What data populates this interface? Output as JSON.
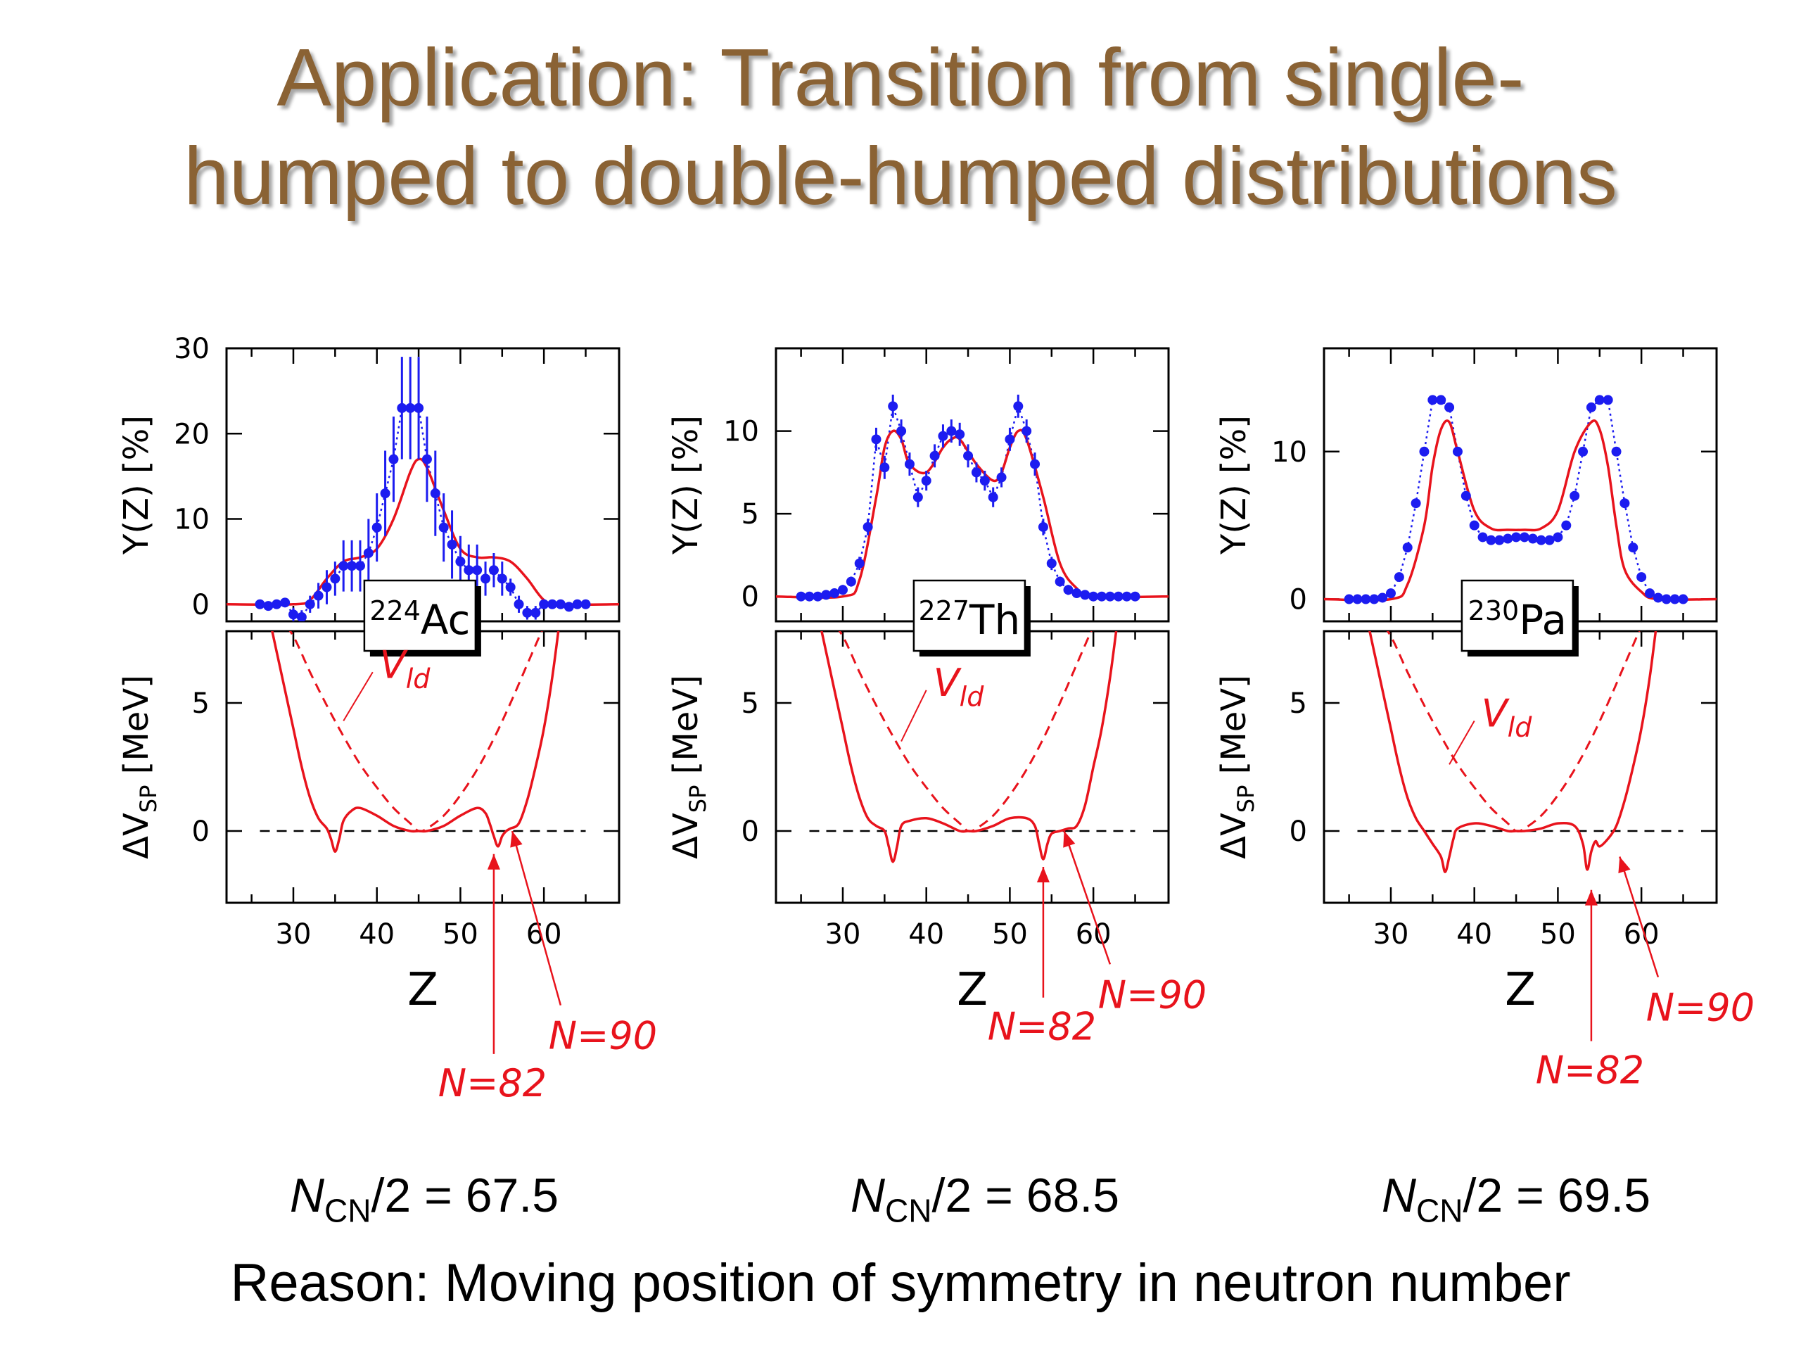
{
  "slide": {
    "title_line1": "Application: Transition from single-",
    "title_line2": "humped to double-humped distributions",
    "reason": "Reason: Moving position of symmetry in neutron number"
  },
  "colors": {
    "title": "#8a6234",
    "theory": "#e8131c",
    "data": "#1c1cf0",
    "annotation": "#e8131c"
  },
  "chart_data": [
    {
      "type": "scatter",
      "nucleus_mass": "224",
      "nucleus_symbol": "Ac",
      "ncn_label": "67.5",
      "xlabel": "Z",
      "ylabel_top": "Y(Z)  [%]",
      "ylabel_bottom_unit": "[MeV]",
      "xlim": [
        22,
        69
      ],
      "ylim_top": [
        -2,
        30
      ],
      "ylim_bottom": [
        -2.8,
        7.8
      ],
      "xticks": [
        "30",
        "40",
        "50",
        "60"
      ],
      "yticks_top": [
        "0",
        "10",
        "20",
        "30"
      ],
      "yticks_bottom": [
        "0",
        "5"
      ],
      "vld_label": "ld",
      "n82_label": "N=82",
      "n90_label": "N=90",
      "yield_x": [
        26,
        27,
        28,
        29,
        30,
        31,
        32,
        33,
        34,
        35,
        36,
        37,
        38,
        39,
        40,
        41,
        42,
        43,
        44,
        45,
        46,
        47,
        48,
        49,
        50,
        51,
        52,
        53,
        54,
        55,
        56,
        57,
        58,
        59,
        60,
        61,
        62,
        63,
        64,
        65
      ],
      "yield_y": [
        0,
        -0.2,
        0,
        0.2,
        -1.2,
        -1.5,
        0,
        1,
        2,
        3,
        4.5,
        4.5,
        4.5,
        6,
        9,
        13,
        17,
        23,
        23,
        23,
        17,
        13,
        9,
        7,
        5,
        4,
        4,
        3,
        4,
        3,
        2,
        0,
        -1,
        -1,
        0,
        0,
        0,
        -0.3,
        0,
        0
      ],
      "yield_err": [
        0.5,
        0.5,
        0.5,
        0.5,
        0.8,
        0.8,
        1,
        1.5,
        2,
        2,
        3,
        3,
        3,
        4,
        4,
        5,
        5,
        6,
        6,
        6,
        5,
        5,
        4,
        4,
        3,
        3,
        3,
        2,
        2,
        2,
        1,
        1,
        0.8,
        0.8,
        0.5,
        0.5,
        0.5,
        0.5,
        0.5,
        0.5
      ],
      "fit_x": [
        22,
        30,
        32,
        34,
        36,
        38,
        40,
        42,
        44,
        45,
        46,
        48,
        50,
        52,
        54,
        56,
        58,
        60,
        62,
        69
      ],
      "fit_y": [
        0,
        0,
        0.5,
        3,
        5,
        5.5,
        6.5,
        10,
        15.5,
        17,
        16,
        11,
        6.5,
        5.5,
        5.5,
        5,
        3,
        0.5,
        0,
        0
      ],
      "sp_x": [
        27,
        28,
        29,
        30,
        31,
        32,
        33,
        34,
        34.5,
        35,
        35.5,
        36,
        37,
        38,
        40,
        42,
        44,
        45,
        46,
        48,
        50,
        52,
        53,
        53.5,
        54,
        54.5,
        55,
        55.5,
        56,
        57,
        58,
        59,
        60,
        61,
        62
      ],
      "sp_y": [
        8.5,
        7,
        5.5,
        4,
        2.5,
        1.3,
        0.5,
        0.1,
        -0.3,
        -0.8,
        -0.3,
        0.4,
        0.8,
        0.9,
        0.6,
        0.2,
        0,
        0,
        0,
        0.2,
        0.6,
        0.9,
        0.7,
        0.3,
        -0.2,
        -0.6,
        -0.2,
        0,
        0.1,
        0.3,
        1.2,
        2.5,
        4,
        6,
        8.5
      ],
      "ld_x": [
        28,
        30,
        32,
        34,
        36,
        38,
        40,
        42,
        44,
        45,
        46,
        48,
        50,
        52,
        54,
        56,
        58,
        60,
        62,
        64
      ],
      "ld_y": [
        8.5,
        7.6,
        6.2,
        4.9,
        3.7,
        2.6,
        1.7,
        0.9,
        0.3,
        0,
        0.1,
        0.6,
        1.4,
        2.4,
        3.6,
        5,
        6.5,
        8,
        9.5,
        11
      ],
      "vld_pointer": [
        [
          36,
          4.3
        ],
        [
          39.5,
          6.2
        ]
      ],
      "n82_arrow": {
        "from": [
          54,
          -8.7
        ],
        "to": [
          54,
          -0.9
        ]
      },
      "n90_arrow": {
        "from": [
          62,
          -6.8
        ],
        "to": [
          56.2,
          0
        ]
      }
    },
    {
      "type": "scatter",
      "nucleus_mass": "227",
      "nucleus_symbol": "Th",
      "ncn_label": "68.5",
      "xlabel": "Z",
      "ylabel_top": "Y(Z)  [%]",
      "ylabel_bottom_unit": "[MeV]",
      "xlim": [
        22,
        69
      ],
      "ylim_top": [
        -1.5,
        15
      ],
      "ylim_bottom": [
        -2.8,
        7.8
      ],
      "xticks": [
        "30",
        "40",
        "50",
        "60"
      ],
      "yticks_top": [
        "0",
        "5",
        "10"
      ],
      "yticks_bottom": [
        "0",
        "5"
      ],
      "vld_label": "ld",
      "n82_label": "N=82",
      "n90_label": "N=90",
      "yield_x": [
        25,
        26,
        27,
        28,
        29,
        30,
        31,
        32,
        33,
        34,
        35,
        36,
        37,
        38,
        39,
        40,
        41,
        42,
        43,
        44,
        45,
        46,
        47,
        48,
        49,
        50,
        51,
        52,
        53,
        54,
        55,
        56,
        57,
        58,
        59,
        60,
        61,
        62,
        63,
        64,
        65
      ],
      "yield_y": [
        0,
        0,
        0,
        0.1,
        0.2,
        0.4,
        0.9,
        2.0,
        4.2,
        9.5,
        7.8,
        11.5,
        10,
        8,
        6,
        7,
        8.5,
        9.7,
        10,
        9.8,
        8.5,
        7.5,
        7,
        6,
        7.2,
        9.5,
        11.5,
        10,
        8,
        4.2,
        2.0,
        0.9,
        0.4,
        0.2,
        0.1,
        0,
        0,
        0,
        0,
        0,
        0
      ],
      "yield_err": [
        0.2,
        0.2,
        0.2,
        0.2,
        0.2,
        0.3,
        0.3,
        0.4,
        0.5,
        0.7,
        0.7,
        0.7,
        0.7,
        0.7,
        0.6,
        0.6,
        0.7,
        0.7,
        0.7,
        0.7,
        0.7,
        0.6,
        0.6,
        0.6,
        0.6,
        0.7,
        0.7,
        0.7,
        0.7,
        0.5,
        0.4,
        0.3,
        0.3,
        0.2,
        0.2,
        0.2,
        0.2,
        0.2,
        0.2,
        0.2,
        0.2
      ],
      "fit_x": [
        22,
        30,
        32,
        34,
        35,
        36,
        37,
        38,
        40,
        42,
        43,
        44,
        46,
        48,
        49,
        50,
        51,
        52,
        54,
        56,
        58,
        60,
        69
      ],
      "fit_y": [
        0,
        0,
        1,
        6,
        9,
        10,
        9.5,
        8,
        7.5,
        9,
        9.5,
        9.5,
        8,
        7,
        7.5,
        9,
        10,
        9.5,
        6,
        2,
        0.5,
        0,
        0
      ],
      "sp_x": [
        27,
        28,
        29,
        30,
        31,
        32,
        33,
        34,
        35,
        35.5,
        36,
        36.5,
        37,
        38,
        40,
        42,
        44,
        45,
        46,
        48,
        50,
        52,
        53,
        53.5,
        54,
        54.5,
        55,
        56,
        57,
        58,
        59,
        60,
        61,
        62,
        63
      ],
      "sp_y": [
        8.5,
        7,
        5.5,
        4,
        2.5,
        1.3,
        0.5,
        0.2,
        0,
        -0.6,
        -1.2,
        -0.6,
        0.2,
        0.4,
        0.5,
        0.3,
        0,
        0,
        0,
        0.2,
        0.5,
        0.5,
        0.2,
        -0.5,
        -1.1,
        -0.5,
        -0.1,
        0,
        0.1,
        0.2,
        1,
        2.5,
        4,
        6,
        8.5
      ],
      "ld_x": [
        28,
        30,
        32,
        34,
        36,
        38,
        40,
        42,
        44,
        45,
        46,
        48,
        50,
        52,
        54,
        56,
        58,
        60,
        62,
        64
      ],
      "ld_y": [
        8.5,
        7.6,
        6.2,
        4.9,
        3.7,
        2.6,
        1.7,
        0.9,
        0.3,
        0,
        0.1,
        0.6,
        1.4,
        2.4,
        3.6,
        5,
        6.5,
        8,
        9.5,
        11
      ],
      "vld_pointer": [
        [
          37,
          3.5
        ],
        [
          40,
          5.5
        ]
      ],
      "n82_arrow": {
        "from": [
          54,
          -6.5
        ],
        "to": [
          54,
          -1.4
        ]
      },
      "n90_arrow": {
        "from": [
          62,
          -5.2
        ],
        "to": [
          56.5,
          0
        ]
      }
    },
    {
      "type": "scatter",
      "nucleus_mass": "230",
      "nucleus_symbol": "Pa",
      "ncn_label": "69.5",
      "xlabel": "Z",
      "ylabel_top": "Y(Z)  [%]",
      "ylabel_bottom_unit": "[MeV]",
      "xlim": [
        22,
        69
      ],
      "ylim_top": [
        -1.5,
        17
      ],
      "ylim_bottom": [
        -2.8,
        7.8
      ],
      "xticks": [
        "30",
        "40",
        "50",
        "60"
      ],
      "yticks_top": [
        "0",
        "10"
      ],
      "yticks_bottom": [
        "0",
        "5"
      ],
      "vld_label": "ld",
      "n82_label": "N=82",
      "n90_label": "N=90",
      "yield_x": [
        25,
        26,
        27,
        28,
        29,
        30,
        31,
        32,
        33,
        34,
        35,
        36,
        37,
        38,
        39,
        40,
        41,
        42,
        43,
        44,
        45,
        46,
        47,
        48,
        49,
        50,
        51,
        52,
        53,
        54,
        55,
        56,
        57,
        58,
        59,
        60,
        61,
        62,
        63,
        64,
        65
      ],
      "yield_y": [
        0,
        0,
        0,
        0,
        0.1,
        0.4,
        1.5,
        3.5,
        6.5,
        10,
        13.5,
        13.5,
        13,
        10,
        7,
        5,
        4.2,
        4,
        4,
        4.1,
        4.2,
        4.2,
        4.1,
        4,
        4,
        4.2,
        5,
        7,
        10,
        13,
        13.5,
        13.5,
        10,
        6.5,
        3.5,
        1.5,
        0.4,
        0.1,
        0,
        0,
        0
      ],
      "yield_err": [
        0.2,
        0.2,
        0.2,
        0.2,
        0.2,
        0.2,
        0.3,
        0.3,
        0.3,
        0.3,
        0.3,
        0.3,
        0.3,
        0.3,
        0.3,
        0.3,
        0.2,
        0.2,
        0.2,
        0.2,
        0.2,
        0.2,
        0.2,
        0.2,
        0.2,
        0.2,
        0.2,
        0.3,
        0.3,
        0.3,
        0.3,
        0.3,
        0.3,
        0.3,
        0.3,
        0.3,
        0.2,
        0.2,
        0.2,
        0.2,
        0.2
      ],
      "fit_x": [
        22,
        30,
        32,
        34,
        35,
        36,
        37,
        38,
        40,
        42,
        44,
        46,
        48,
        50,
        52,
        54,
        55,
        56,
        57,
        58,
        60,
        62,
        69
      ],
      "fit_y": [
        0,
        0,
        1,
        5,
        9,
        11.5,
        12,
        10,
        6,
        4.8,
        4.7,
        4.7,
        4.8,
        6,
        10,
        12,
        11.5,
        9,
        5,
        2,
        0.5,
        0,
        0
      ],
      "sp_x": [
        27,
        28,
        29,
        30,
        31,
        32,
        33,
        34,
        35,
        36,
        36.5,
        37,
        37.5,
        38,
        40,
        42,
        44,
        45,
        46,
        48,
        50,
        52,
        53,
        53.5,
        54,
        54.5,
        55,
        56,
        57,
        58,
        59,
        60,
        61,
        62,
        63
      ],
      "sp_y": [
        8.5,
        7,
        5.5,
        4,
        2.5,
        1.3,
        0.5,
        0,
        -0.5,
        -1,
        -1.6,
        -1,
        -0.3,
        0.1,
        0.3,
        0.2,
        0,
        0,
        0,
        0.1,
        0.3,
        0.2,
        -0.5,
        -1.5,
        -0.8,
        -0.4,
        -0.6,
        -0.3,
        0.2,
        1.2,
        2.5,
        4,
        6,
        8.5,
        10.5
      ],
      "ld_x": [
        28,
        30,
        32,
        34,
        36,
        38,
        40,
        42,
        44,
        45,
        46,
        48,
        50,
        52,
        54,
        56,
        58,
        60,
        62,
        64
      ],
      "ld_y": [
        8.5,
        7.6,
        6.2,
        4.9,
        3.7,
        2.6,
        1.7,
        0.9,
        0.3,
        0,
        0.1,
        0.6,
        1.4,
        2.4,
        3.6,
        5,
        6.5,
        8,
        9.5,
        11
      ],
      "vld_pointer": [
        [
          37,
          2.6
        ],
        [
          40,
          4.3
        ]
      ],
      "n82_arrow": {
        "from": [
          54,
          -8.2
        ],
        "to": [
          54,
          -2.3
        ]
      },
      "n90_arrow": {
        "from": [
          62,
          -5.7
        ],
        "to": [
          57.4,
          -1
        ]
      }
    }
  ]
}
